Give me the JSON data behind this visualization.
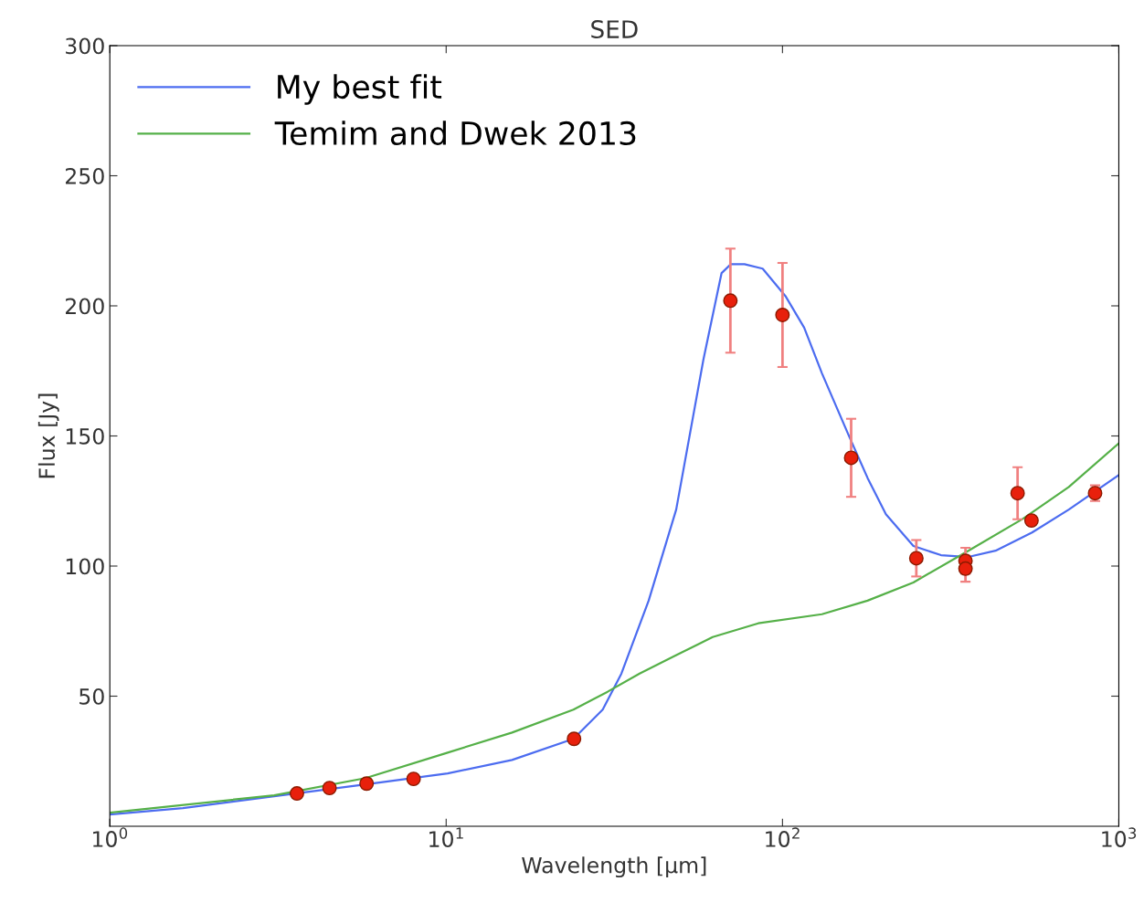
{
  "chart_data": {
    "type": "line",
    "title": "SED",
    "xlabel": "Wavelength [μm]",
    "ylabel": "Flux [Jy]",
    "log": "x",
    "xlim": [
      1,
      1000
    ],
    "ylim": [
      0,
      300
    ],
    "xticks": [
      {
        "value": 1,
        "label": "10$^{0}$"
      },
      {
        "value": 10,
        "label": "10$^{1}$"
      },
      {
        "value": 100,
        "label": "10$^{2}$"
      },
      {
        "value": 1000,
        "label": "10$^{3}$"
      }
    ],
    "yticks": [
      50,
      100,
      150,
      200,
      250,
      300
    ],
    "grid": false,
    "legend": "top left",
    "series": [
      {
        "name": "My best fit",
        "color": "#4c6cf0",
        "x": [
          1,
          1.65,
          3.08,
          5.76,
          10.1,
          15.7,
          23.9,
          29.2,
          33.2,
          40,
          48.3,
          58.2,
          65.9,
          70.2,
          77.1,
          87.3,
          102,
          116,
          131,
          158,
          179,
          203,
          245,
          296,
          357,
          430,
          552,
          710,
          1000
        ],
        "values": [
          4.5,
          7,
          11.5,
          16.1,
          20.3,
          25.5,
          33.6,
          44.8,
          58.7,
          86.7,
          121.7,
          179.4,
          212.6,
          216,
          216,
          214.3,
          203.8,
          191.6,
          174.1,
          149.7,
          133.9,
          119.9,
          107.7,
          104.2,
          103.5,
          105.9,
          112.9,
          121.7,
          135
        ]
      },
      {
        "name": "Temim and Dwek 2013",
        "color": "#55b048",
        "x": [
          1,
          3.08,
          5.76,
          10.1,
          15.7,
          23.9,
          30.2,
          37.6,
          48.2,
          62,
          84.7,
          131,
          179,
          245,
          357,
          519,
          710,
          1000
        ],
        "values": [
          5.2,
          11.9,
          18.5,
          28.3,
          36,
          44.8,
          51.7,
          58.7,
          65.7,
          72.7,
          78,
          81.5,
          86.7,
          93.7,
          105.9,
          118.2,
          130.4,
          147.2
        ]
      },
      {
        "color": "#e8200c",
        "type": "scatter",
        "marker": "circle",
        "x": [
          3.6,
          4.5,
          5.8,
          8,
          24,
          70,
          100,
          160,
          250,
          350,
          350,
          500,
          550,
          850
        ],
        "values": [
          12.6,
          14.7,
          16.4,
          18.2,
          33.6,
          202,
          196.5,
          141.6,
          103,
          102,
          99,
          128,
          117.5,
          128
        ],
        "errors": [
          null,
          null,
          null,
          null,
          null,
          20,
          20,
          15,
          7,
          5,
          5,
          10,
          null,
          3
        ]
      }
    ]
  }
}
